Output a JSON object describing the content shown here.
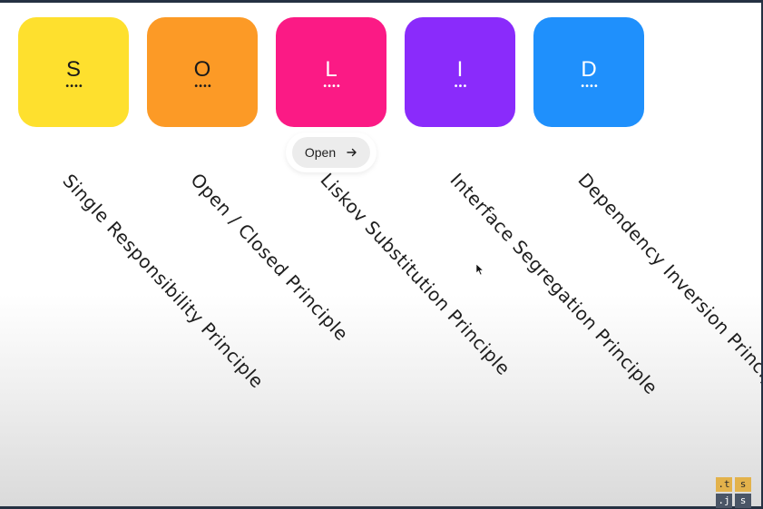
{
  "tiles": [
    {
      "letter": "S",
      "dots": "••••",
      "color": "#FEE02E",
      "text_color": "#1a1a1a"
    },
    {
      "letter": "O",
      "dots": "••••",
      "color": "#FC9A26",
      "text_color": "#1a1a1a"
    },
    {
      "letter": "L",
      "dots": "••••",
      "color": "#FB1A85",
      "text_color": "#ffffff"
    },
    {
      "letter": "I",
      "dots": "•••",
      "color": "#8A2BFB",
      "text_color": "#ffffff"
    },
    {
      "letter": "D",
      "dots": "••••",
      "color": "#1F90FC",
      "text_color": "#ffffff"
    }
  ],
  "open_button": {
    "label": "Open",
    "icon": "arrow-right-icon"
  },
  "principles": [
    "Single Responsibility Principle",
    "Open / Closed Principle",
    "Liskov Substitution Principle",
    "Interface Segregation Principle",
    "Dependency Inversion Principle"
  ],
  "logo": {
    "cells": [
      ".t",
      "s",
      ".j",
      "s"
    ],
    "colors": [
      "#E3B24B",
      "#4A5566"
    ]
  }
}
